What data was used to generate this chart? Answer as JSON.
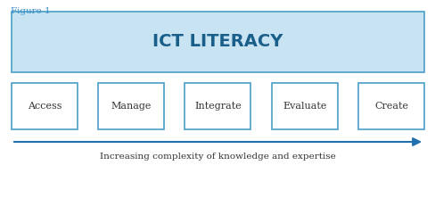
{
  "figure_label": "Figure 1",
  "figure_label_color": "#3A8EC8",
  "title_text": "ICT LITERACY",
  "title_bg_color": "#C8E4F2",
  "title_border_color": "#4A9EC8",
  "title_text_color": "#1A5E8A",
  "box_labels": [
    "Access",
    "Manage",
    "Integrate",
    "Evaluate",
    "Create"
  ],
  "box_border_color": "#4A9EC8",
  "box_text_color": "#333333",
  "box_bg_color": "#FFFFFF",
  "arrow_color": "#2070B0",
  "arrow_label": "Increasing complexity of knowledge and expertise",
  "arrow_label_color": "#333333",
  "bg_color": "#FFFFFF",
  "fig_width": 4.89,
  "fig_height": 2.41,
  "dpi": 100
}
